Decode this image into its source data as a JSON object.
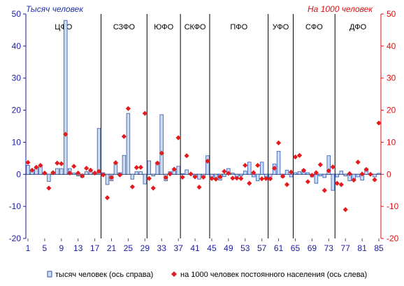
{
  "chart_data": {
    "type": "bar",
    "left_axis_title": "Тысяч человек",
    "right_axis_title": "На 1000 человек",
    "left_ylim": [
      -20,
      50
    ],
    "right_ylim": [
      -20,
      50
    ],
    "yticks": [
      -20,
      -10,
      0,
      10,
      20,
      30,
      40,
      50
    ],
    "xlim": [
      1,
      85
    ],
    "xticks": [
      1,
      5,
      9,
      13,
      17,
      21,
      25,
      29,
      33,
      37,
      41,
      45,
      49,
      53,
      57,
      61,
      65,
      69,
      73,
      77,
      81,
      85
    ],
    "grid": false,
    "legend_position": "bottom",
    "regions": [
      {
        "name": "ЦФО",
        "start": 1,
        "end": 18
      },
      {
        "name": "СЗФО",
        "start": 19,
        "end": 29
      },
      {
        "name": "ЮФО",
        "start": 30,
        "end": 37
      },
      {
        "name": "СКФО",
        "start": 38,
        "end": 44
      },
      {
        "name": "ПФО",
        "start": 45,
        "end": 58
      },
      {
        "name": "УФО",
        "start": 59,
        "end": 64
      },
      {
        "name": "СФО",
        "start": 65,
        "end": 74
      },
      {
        "name": "ДФО",
        "start": 75,
        "end": 85
      }
    ],
    "series": [
      {
        "name": "тысяч человек (ось справа)",
        "kind": "bar",
        "color": "#c9dcf7",
        "border": "#3355aa",
        "values": [
          2.8,
          1.2,
          1.8,
          2.5,
          0.3,
          -2.2,
          0.8,
          1.8,
          1.8,
          48.0,
          1.8,
          0.4,
          -0.5,
          -1.0,
          0.8,
          1.2,
          0.5,
          14.3,
          0.5,
          -3.2,
          -2.0,
          3.5,
          0.5,
          5.9,
          19.0,
          -1.5,
          0.8,
          0.8,
          -3.0,
          4.2,
          -0.5,
          3.8,
          18.6,
          -2.0,
          0.8,
          1.2,
          2.5,
          0.2,
          1.4,
          0.3,
          -0.8,
          -1.5,
          -0.8,
          5.8,
          -0.8,
          -1.5,
          -1.8,
          -0.7,
          1.8,
          0.4,
          -0.8,
          -0.5,
          1.0,
          3.8,
          -0.8,
          -2.0,
          3.8,
          -0.8,
          -1.5,
          3.2,
          7.2,
          -1.0,
          1.3,
          -0.8,
          0.5,
          0.8,
          1.5,
          0.5,
          -0.8,
          -2.8,
          -0.5,
          -1.0,
          5.8,
          -5.0,
          -0.8,
          1.0,
          -0.5,
          -2.0,
          -2.0,
          -0.8,
          -1.8,
          1.8,
          0.2,
          -0.8,
          0.3
        ]
      },
      {
        "name": "на 1000 человек постоянного населения (ось слева)",
        "kind": "marker",
        "color": "#e41a1c",
        "values": [
          3.7,
          1.3,
          2.2,
          2.8,
          0.4,
          -4.3,
          0.5,
          3.5,
          3.3,
          12.5,
          0.4,
          2.5,
          0.4,
          -0.5,
          1.9,
          1.3,
          0.4,
          0.9,
          -0.2,
          -7.3,
          -1.0,
          3.6,
          -0.2,
          11.8,
          20.5,
          -3.9,
          2.1,
          2.2,
          19.0,
          -1.3,
          -4.3,
          3.5,
          6.6,
          -1.0,
          0.1,
          1.6,
          11.4,
          -0.9,
          5.8,
          0.1,
          -0.8,
          -4.0,
          -0.9,
          4.1,
          -1.3,
          -1.5,
          -0.8,
          0.9,
          0.3,
          -1.2,
          -1.2,
          -1.3,
          2.8,
          -2.8,
          0.5,
          2.8,
          -1.4,
          -1.3,
          -1.4,
          1.9,
          9.8,
          -0.6,
          -3.2,
          0.7,
          5.4,
          5.9,
          1.2,
          -2.3,
          -0.3,
          0.5,
          3.0,
          -5.0,
          1.1,
          2.3,
          -2.8,
          -3.2,
          -11.0,
          0.2,
          -1.8,
          3.8,
          0.1,
          1.5,
          0.0,
          -1.7,
          16.0
        ]
      }
    ]
  }
}
